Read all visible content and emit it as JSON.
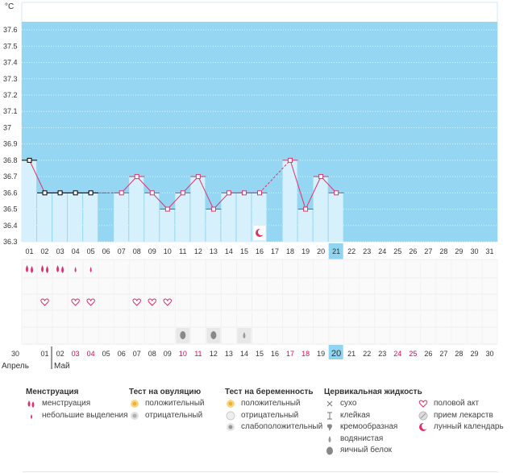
{
  "unit": "°C",
  "chart_data": {
    "type": "bar",
    "title": "",
    "ylabel": "°C",
    "xlabel": "",
    "ylim": [
      36.3,
      37.65
    ],
    "yticks": [
      "37.6",
      "37.5",
      "37.4",
      "37.3",
      "37.2",
      "37.1",
      "37",
      "36.9",
      "36.8",
      "36.7",
      "36.6",
      "36.5",
      "36.4",
      "36.3"
    ],
    "categories": [
      "01",
      "02",
      "03",
      "04",
      "05",
      "06",
      "07",
      "08",
      "09",
      "10",
      "11",
      "12",
      "13",
      "14",
      "15",
      "16",
      "17",
      "18",
      "19",
      "20",
      "21",
      "22",
      "23",
      "24",
      "25",
      "26",
      "27",
      "28",
      "29",
      "30",
      "31"
    ],
    "series": [
      {
        "values": [
          36.8,
          36.6,
          36.6,
          36.6,
          36.6,
          null,
          36.6,
          36.7,
          36.6,
          36.5,
          36.6,
          36.7,
          36.5,
          36.6,
          36.6,
          36.6,
          null,
          36.8,
          36.5,
          36.7,
          36.6,
          null,
          null,
          null,
          null,
          null,
          null,
          null,
          null,
          null,
          null
        ]
      }
    ],
    "grid": true,
    "highlight_day": "21",
    "colors": {
      "plot_bg": "#95d7f3",
      "bar": "#d6f0fc",
      "line": "#e0306a",
      "today": "#8fd4f0"
    }
  },
  "symptoms": {
    "menstruation": [
      "heavy",
      "heavy",
      "heavy",
      "light",
      "light",
      null,
      null,
      null,
      null,
      null,
      null,
      null,
      null,
      null,
      null,
      null,
      null,
      null,
      null,
      null,
      null,
      null,
      null,
      null,
      null,
      null,
      null,
      null,
      null,
      null,
      null
    ],
    "intercourse": [
      null,
      "heart",
      null,
      "heart",
      "heart",
      null,
      null,
      "heart",
      "heart",
      "heart",
      null,
      null,
      null,
      null,
      null,
      null,
      null,
      null,
      null,
      null,
      null,
      null,
      null,
      null,
      null,
      null,
      null,
      null,
      null,
      null,
      null
    ],
    "cervical_fluid": [
      null,
      null,
      null,
      null,
      null,
      null,
      null,
      null,
      null,
      null,
      "egg-white",
      null,
      "egg-white",
      null,
      "watery",
      null,
      null,
      null,
      null,
      null,
      null,
      null,
      null,
      null,
      null,
      null,
      null,
      null,
      null,
      null,
      null
    ]
  },
  "dates": {
    "values": [
      "30",
      "01",
      "02",
      "03",
      "04",
      "05",
      "06",
      "07",
      "08",
      "09",
      "10",
      "11",
      "12",
      "13",
      "14",
      "15",
      "16",
      "17",
      "18",
      "19",
      "20",
      "21",
      "22",
      "23",
      "24",
      "25",
      "26",
      "27",
      "28",
      "29",
      "30"
    ],
    "red": [
      "03",
      "04",
      "10",
      "11",
      "17",
      "18",
      "24",
      "25"
    ],
    "highlight": "20",
    "month_april": "Апрель",
    "month_may": "Май"
  },
  "legend": {
    "menstruation": {
      "title": "Менструация",
      "items": [
        {
          "icon": "blood-drops-icon",
          "label": "менструация"
        },
        {
          "icon": "blood-drop-icon",
          "label": "небольшие выделения"
        }
      ]
    },
    "ovulation": {
      "title": "Тест на овуляцию",
      "items": [
        {
          "icon": "positive-test-icon",
          "label": "положительный"
        },
        {
          "icon": "negative-test-icon",
          "label": "отрицательный"
        }
      ]
    },
    "pregnancy": {
      "title": "Тест на беременность",
      "items": [
        {
          "icon": "positive-test-icon",
          "label": "положительный"
        },
        {
          "icon": "negative-test-icon",
          "label": "отрицательный"
        },
        {
          "icon": "weak-test-icon",
          "label": "слабоположительный"
        }
      ]
    },
    "cervical": {
      "title": "Цервикальная жидкость",
      "items": [
        {
          "icon": "dry-icon",
          "label": "сухо"
        },
        {
          "icon": "sticky-icon",
          "label": "клейкая"
        },
        {
          "icon": "creamy-icon",
          "label": "кремообразная"
        },
        {
          "icon": "watery-icon",
          "label": "водянистая"
        },
        {
          "icon": "egg-white-icon",
          "label": "яичный белок"
        }
      ]
    },
    "other": {
      "items": [
        {
          "icon": "heart-icon",
          "label": "половой акт"
        },
        {
          "icon": "pill-icon",
          "label": "прием лекарств"
        },
        {
          "icon": "moon-icon",
          "label": "лунный календарь"
        }
      ]
    }
  },
  "moon_day": "16"
}
